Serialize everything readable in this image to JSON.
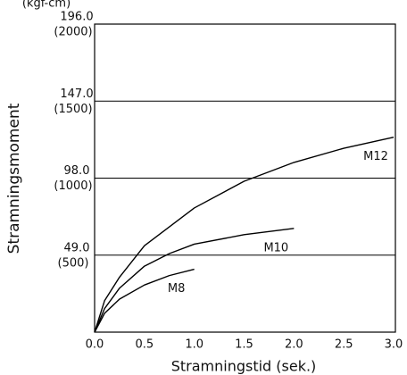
{
  "chart_data": {
    "type": "line",
    "y_unit": "(kgf-cm)",
    "xlabel": "Stramningstid (sek.)",
    "ylabel": "Stramningsmoment",
    "xlim": [
      0,
      3.0
    ],
    "ylim": [
      0,
      196.0
    ],
    "xticks": [
      {
        "value": 0,
        "label": "0.0"
      },
      0.5,
      {
        "value": 1,
        "label": "1.0"
      },
      1.5,
      {
        "value": 2,
        "label": "2.0"
      },
      2.5,
      {
        "value": 3,
        "label": "3.0"
      }
    ],
    "yticks": [
      {
        "value": 49,
        "label": "49.0",
        "sublabel": "(500)"
      },
      {
        "value": 98,
        "label": "98.0",
        "sublabel": "(1000)"
      },
      {
        "value": 147,
        "label": "147.0",
        "sublabel": "(1500)"
      },
      {
        "value": 196,
        "label": "196.0",
        "sublabel": "(2000)"
      }
    ],
    "grid": true,
    "series": [
      {
        "name": "M12",
        "color": "#000000",
        "x": [
          0,
          0.1,
          0.25,
          0.5,
          1.0,
          1.5,
          2.0,
          2.5,
          3.0
        ],
        "values": [
          0,
          20,
          35,
          55,
          79,
          96,
          108,
          117,
          124
        ]
      },
      {
        "name": "M10",
        "color": "#000000",
        "x": [
          0,
          0.1,
          0.25,
          0.5,
          0.75,
          1.0,
          1.5,
          2.0
        ],
        "values": [
          0,
          15,
          28,
          42,
          50,
          56,
          62,
          66
        ]
      },
      {
        "name": "M8",
        "color": "#000000",
        "x": [
          0,
          0.1,
          0.25,
          0.5,
          0.75,
          1.0
        ],
        "values": [
          0,
          12,
          21,
          30,
          36,
          40
        ]
      }
    ]
  }
}
